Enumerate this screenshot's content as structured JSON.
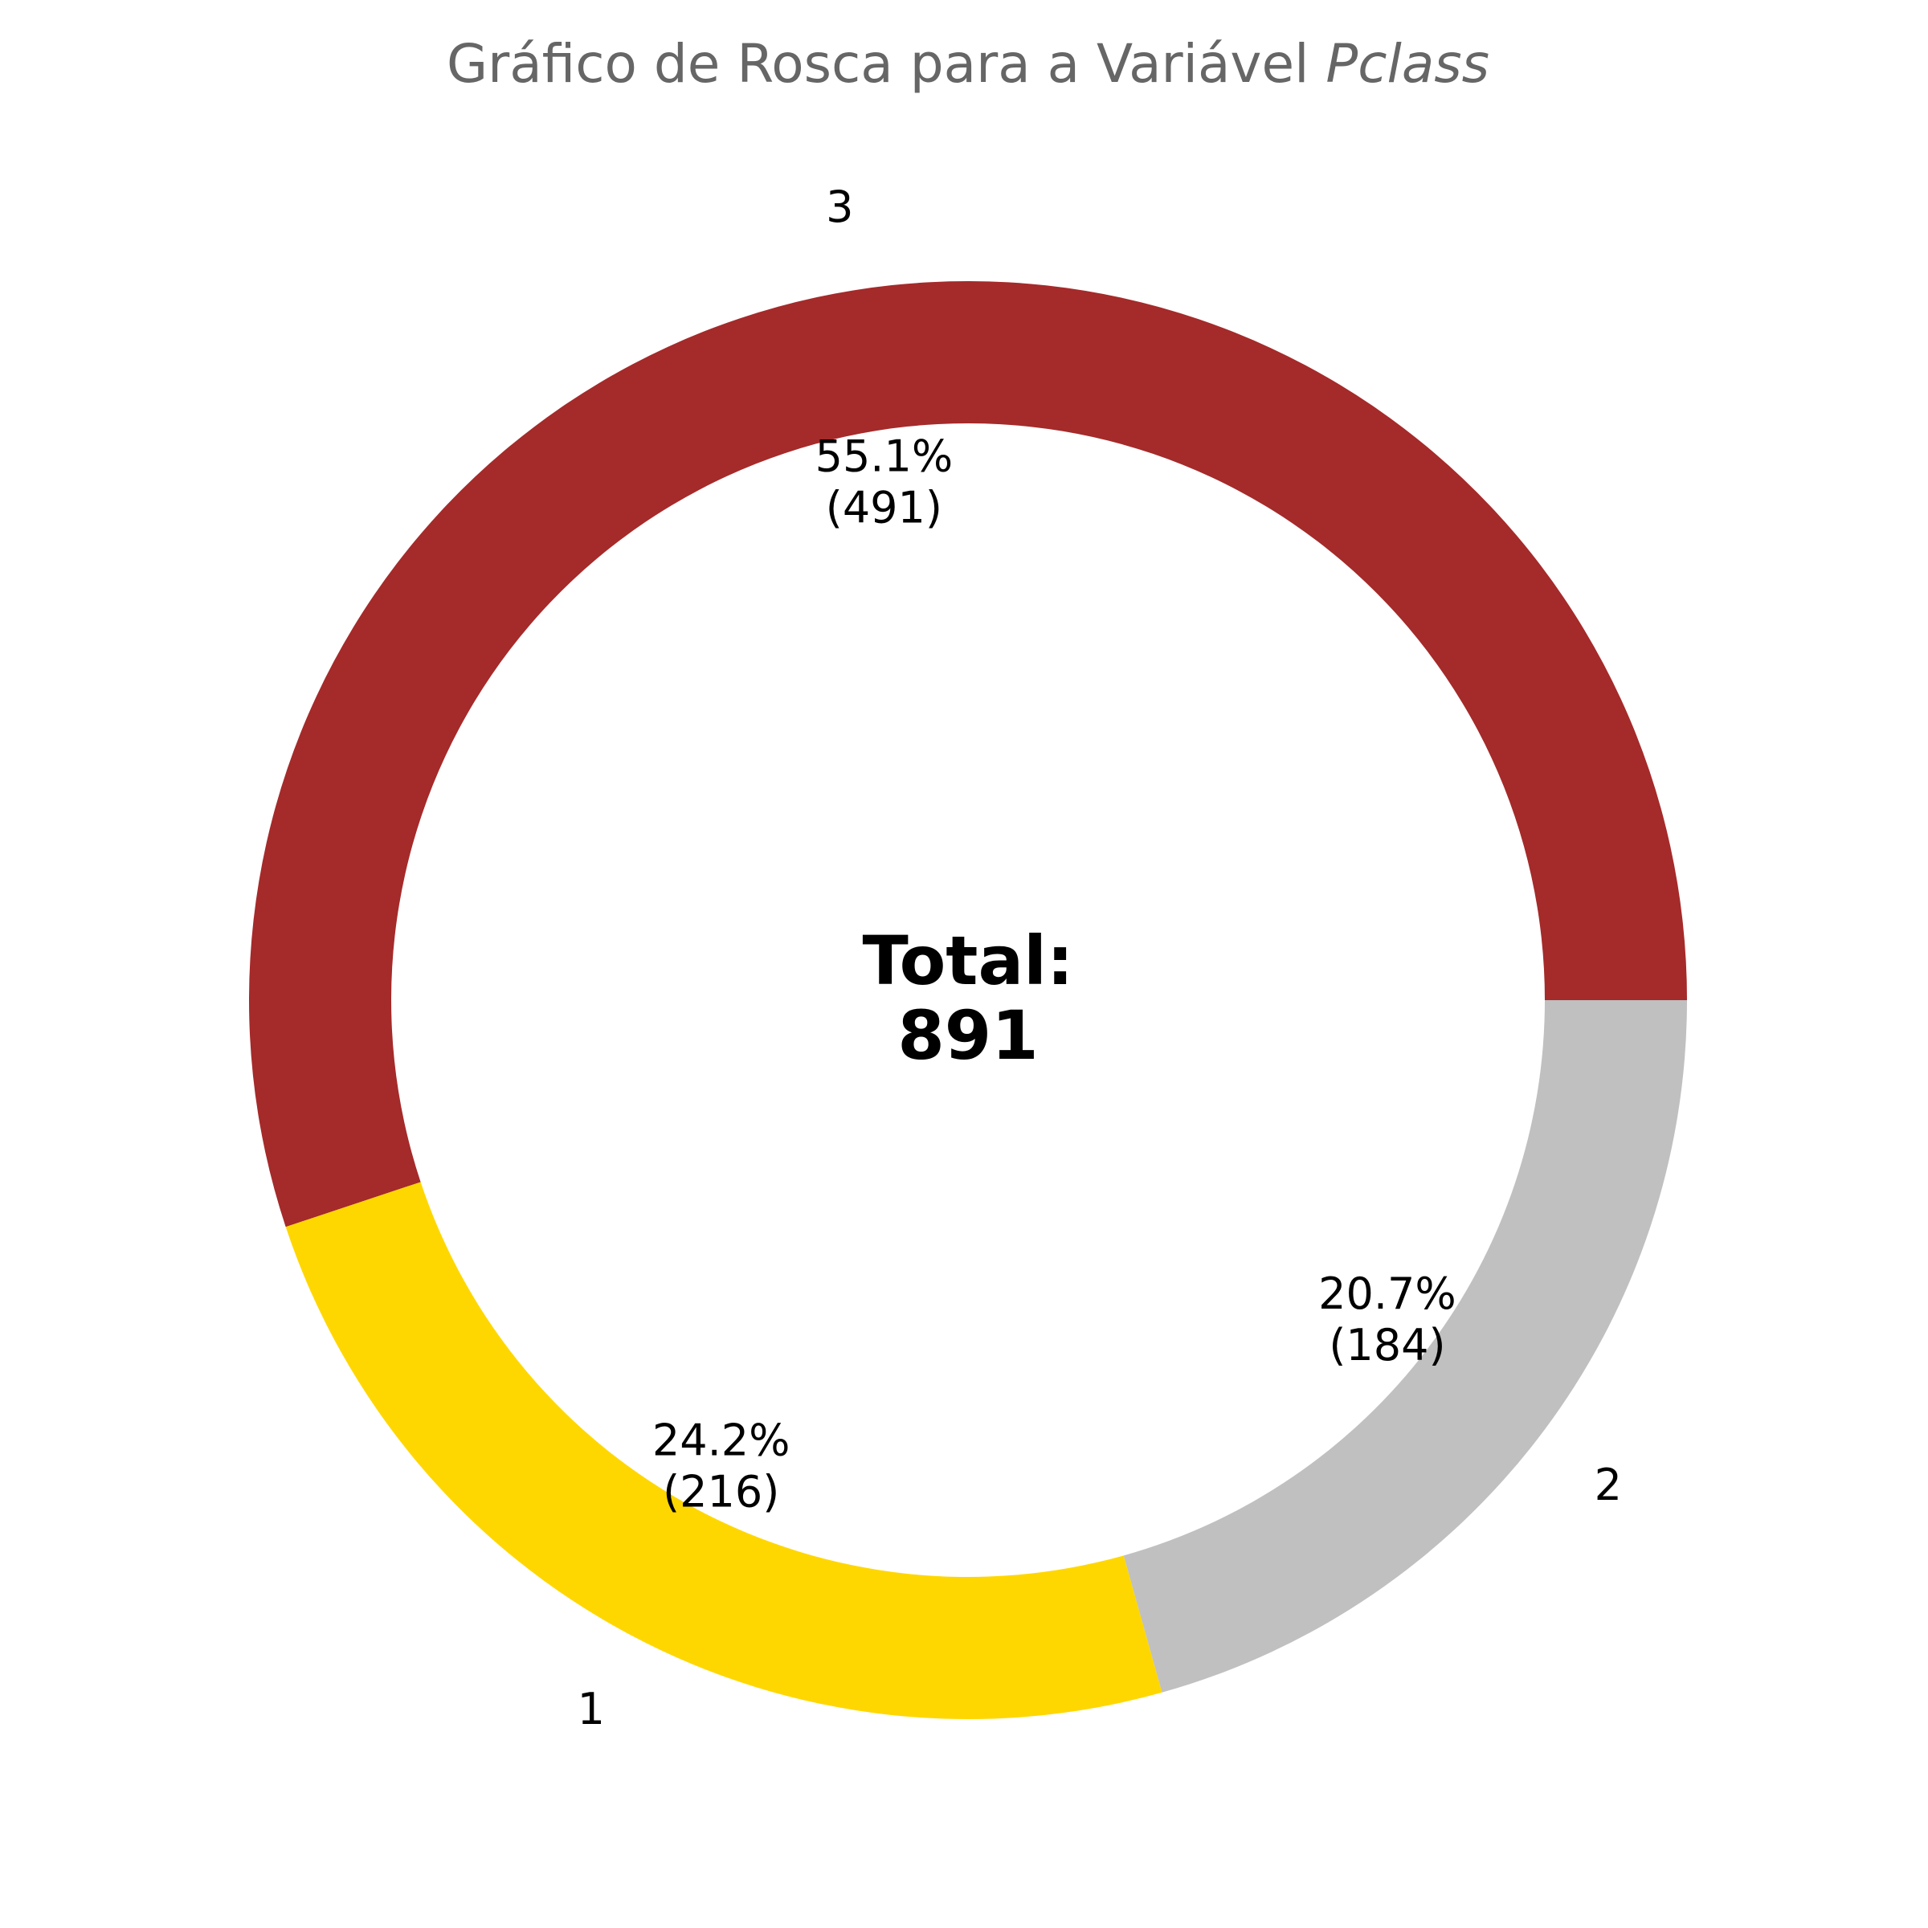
{
  "chart_data": {
    "type": "pie",
    "title": {
      "prefix": "Gráfico de Rosca para a Variável ",
      "emphasis": "Pclass"
    },
    "variant": "donut",
    "start_angle_deg": 0,
    "direction": "counterclockwise",
    "slices": [
      {
        "label": "3",
        "value": 491,
        "percent_label": "55.1%",
        "count_label": "(491)",
        "color": "#a52a2a"
      },
      {
        "label": "1",
        "value": 216,
        "percent_label": "24.2%",
        "count_label": "(216)",
        "color": "#ffd700"
      },
      {
        "label": "2",
        "value": 184,
        "percent_label": "20.7%",
        "count_label": "(184)",
        "color": "#c0c0c0"
      }
    ],
    "center": {
      "label": "Total:",
      "value": "891"
    }
  }
}
